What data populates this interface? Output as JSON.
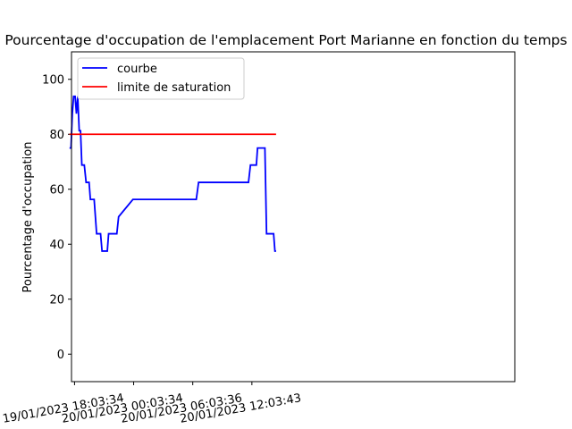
{
  "chart_data": {
    "type": "line",
    "title": "Pourcentage d'occupation de l'emplacement Port Marianne en fonction du temps",
    "xlabel": "",
    "ylabel": "Pourcentage d'occupation",
    "ylim": [
      -10,
      110
    ],
    "yticks": [
      0,
      20,
      40,
      60,
      80,
      100
    ],
    "xlim": [
      "19/01/2023 17:45:00",
      "21/01/2023 14:45:00"
    ],
    "xticks": [
      "19/01/2023 18:03:34",
      "20/01/2023 00:03:34",
      "20/01/2023 06:03:36",
      "20/01/2023 12:03:43"
    ],
    "grid": false,
    "legend_position": "top-left",
    "series": [
      {
        "name": "courbe",
        "color": "#0000ff",
        "x": [
          "19/01/2023 17:33:00",
          "19/01/2023 17:42:00",
          "19/01/2023 17:50:00",
          "19/01/2023 17:58:00",
          "19/01/2023 18:07:00",
          "19/01/2023 18:15:00",
          "19/01/2023 18:23:00",
          "19/01/2023 18:32:00",
          "19/01/2023 18:40:00",
          "19/01/2023 18:44:00",
          "19/01/2023 18:48:00",
          "19/01/2023 19:03:00",
          "19/01/2023 19:14:00",
          "19/01/2023 19:32:00",
          "19/01/2023 19:40:00",
          "19/01/2023 19:55:00",
          "19/01/2023 20:03:00",
          "19/01/2023 20:18:00",
          "19/01/2023 20:42:00",
          "19/01/2023 20:51:00",
          "19/01/2023 21:10:00",
          "19/01/2023 21:23:00",
          "19/01/2023 21:31:00",
          "19/01/2023 22:21:00",
          "19/01/2023 22:32:00",
          "19/01/2023 23:59:00",
          "20/01/2023 00:25:00",
          "20/01/2023 00:36:00",
          "20/01/2023 01:09:00",
          "20/01/2023 01:16:00",
          "20/01/2023 06:25:00",
          "20/01/2023 06:39:00",
          "20/01/2023 11:43:00",
          "20/01/2023 11:55:00",
          "20/01/2023 12:31:00",
          "20/01/2023 12:38:00",
          "20/01/2023 13:23:00",
          "20/01/2023 13:33:00",
          "20/01/2023 14:16:00",
          "20/01/2023 14:24:00",
          "20/01/2023 14:31:00"
        ],
        "y": [
          75,
          75,
          87.5,
          93.8,
          93.8,
          87.5,
          93.8,
          81.3,
          81.3,
          75,
          68.8,
          68.8,
          62.5,
          62.5,
          56.3,
          56.3,
          56.3,
          43.8,
          43.8,
          37.5,
          37.5,
          37.5,
          43.8,
          43.8,
          50,
          56.3,
          56.3,
          56.3,
          56.3,
          56.3,
          56.3,
          62.5,
          62.5,
          68.8,
          68.8,
          75,
          75,
          43.8,
          43.8,
          37.5,
          37.5
        ]
      },
      {
        "name": "limite de saturation",
        "color": "#ff0000",
        "x": [
          "19/01/2023 17:33:00",
          "20/01/2023 14:31:00"
        ],
        "y": [
          80,
          80
        ]
      }
    ]
  }
}
